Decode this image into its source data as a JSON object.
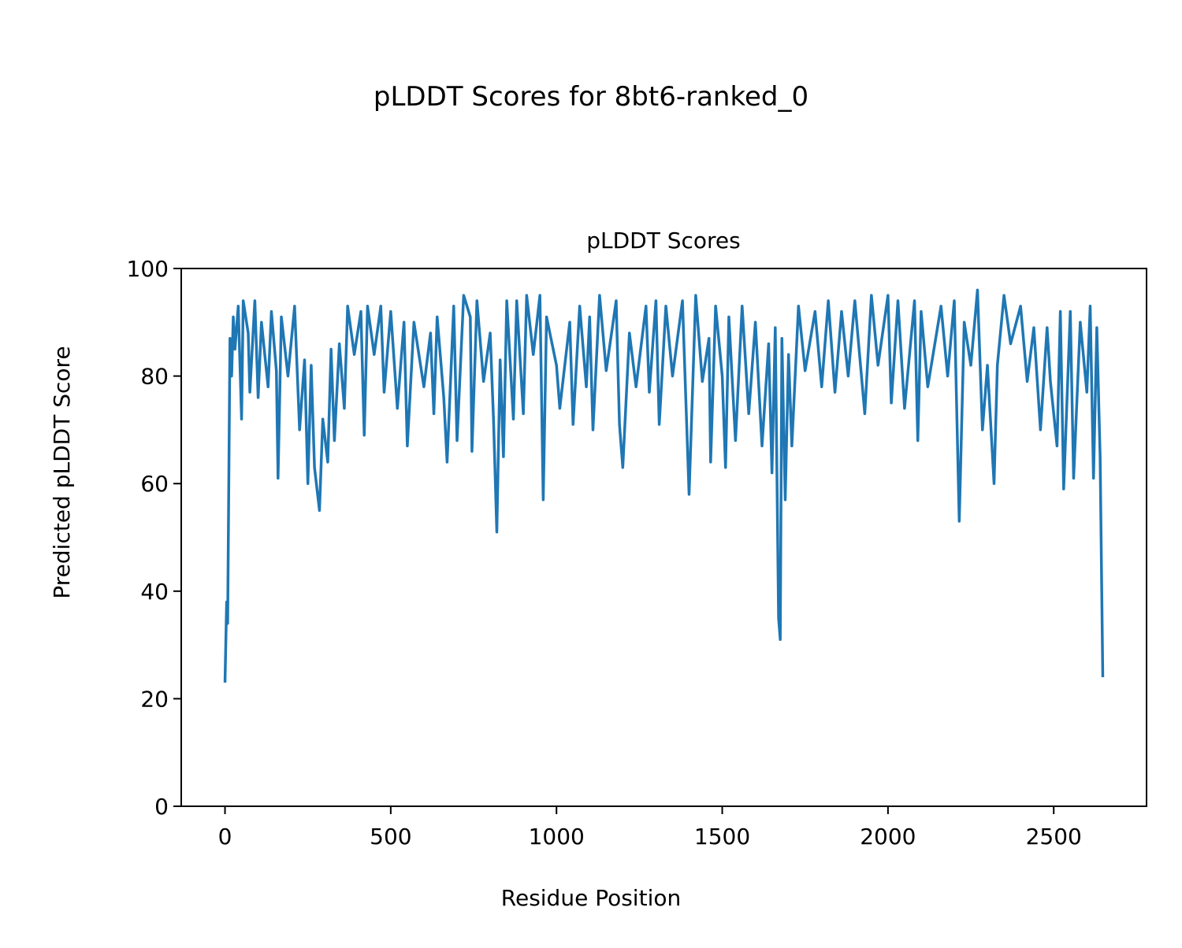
{
  "figure_title": "pLDDT Scores for 8bt6-ranked_0",
  "chart_data": {
    "type": "line",
    "title": "pLDDT Scores",
    "xlabel": "Residue Position",
    "ylabel": "Predicted pLDDT Score",
    "xlim": [
      -132,
      2780
    ],
    "ylim": [
      0,
      100
    ],
    "xticks": [
      0,
      500,
      1000,
      1500,
      2000,
      2500
    ],
    "xtick_labels": [
      "0",
      "500",
      "1000",
      "1500",
      "2000",
      "2500"
    ],
    "yticks": [
      0,
      20,
      40,
      60,
      80,
      100
    ],
    "ytick_labels": [
      "0",
      "20",
      "40",
      "60",
      "80",
      "100"
    ],
    "grid": false,
    "line_color": "#1f77b4",
    "x": [
      0,
      5,
      8,
      15,
      20,
      25,
      30,
      40,
      50,
      55,
      70,
      75,
      90,
      100,
      110,
      130,
      140,
      155,
      160,
      170,
      190,
      210,
      225,
      240,
      250,
      260,
      270,
      285,
      295,
      310,
      320,
      330,
      345,
      360,
      370,
      390,
      410,
      420,
      430,
      450,
      470,
      480,
      500,
      520,
      540,
      550,
      570,
      600,
      620,
      630,
      640,
      660,
      670,
      690,
      700,
      720,
      740,
      745,
      760,
      780,
      800,
      810,
      820,
      830,
      840,
      850,
      870,
      880,
      900,
      910,
      930,
      950,
      960,
      970,
      1000,
      1010,
      1040,
      1050,
      1070,
      1090,
      1100,
      1110,
      1130,
      1150,
      1180,
      1190,
      1200,
      1220,
      1240,
      1270,
      1280,
      1300,
      1310,
      1330,
      1350,
      1380,
      1400,
      1420,
      1440,
      1460,
      1465,
      1480,
      1500,
      1510,
      1520,
      1540,
      1560,
      1580,
      1600,
      1620,
      1640,
      1650,
      1660,
      1670,
      1675,
      1680,
      1690,
      1700,
      1710,
      1730,
      1750,
      1780,
      1800,
      1820,
      1840,
      1860,
      1880,
      1900,
      1930,
      1950,
      1970,
      2000,
      2010,
      2030,
      2050,
      2080,
      2090,
      2100,
      2120,
      2160,
      2180,
      2200,
      2215,
      2230,
      2250,
      2270,
      2285,
      2300,
      2320,
      2330,
      2350,
      2370,
      2400,
      2420,
      2440,
      2460,
      2480,
      2490,
      2510,
      2520,
      2530,
      2550,
      2560,
      2580,
      2600,
      2610,
      2620,
      2630,
      2640,
      2648
    ],
    "y": [
      23,
      38,
      34,
      87,
      80,
      91,
      85,
      93,
      72,
      94,
      88,
      77,
      94,
      76,
      90,
      78,
      92,
      81,
      61,
      91,
      80,
      93,
      70,
      83,
      60,
      82,
      63,
      55,
      72,
      64,
      85,
      68,
      86,
      74,
      93,
      84,
      92,
      69,
      93,
      84,
      93,
      77,
      92,
      74,
      90,
      67,
      90,
      78,
      88,
      73,
      91,
      76,
      64,
      93,
      68,
      95,
      91,
      66,
      94,
      79,
      88,
      72,
      51,
      83,
      65,
      94,
      72,
      94,
      73,
      95,
      84,
      95,
      57,
      91,
      82,
      74,
      90,
      71,
      93,
      78,
      91,
      70,
      95,
      81,
      94,
      71,
      63,
      88,
      78,
      93,
      77,
      94,
      71,
      93,
      80,
      94,
      58,
      95,
      79,
      87,
      64,
      93,
      80,
      63,
      91,
      68,
      93,
      73,
      90,
      67,
      86,
      62,
      89,
      35,
      31,
      87,
      57,
      84,
      67,
      93,
      81,
      92,
      78,
      94,
      77,
      92,
      80,
      94,
      73,
      95,
      82,
      95,
      75,
      94,
      74,
      94,
      68,
      92,
      78,
      93,
      80,
      94,
      53,
      90,
      82,
      96,
      70,
      82,
      60,
      82,
      95,
      86,
      93,
      79,
      89,
      70,
      89,
      79,
      67,
      92,
      59,
      92,
      61,
      90,
      77,
      93,
      61,
      89,
      65,
      24
    ]
  }
}
